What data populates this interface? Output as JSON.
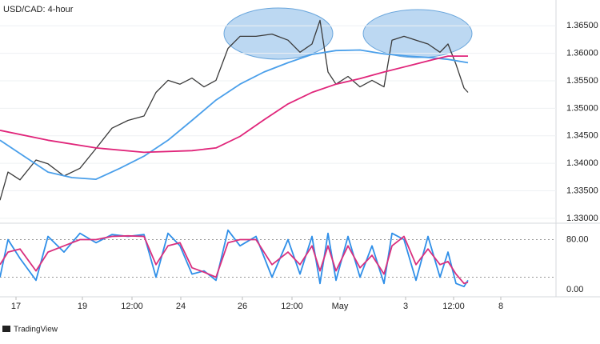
{
  "chart_data": [
    {
      "type": "line",
      "title": "USD/CAD: 4-hour",
      "xlim": [
        0,
        139
      ],
      "ylim": [
        1.3294,
        1.3697
      ],
      "yticks": [
        {
          "value": 1.365,
          "label": "1.36500"
        },
        {
          "value": 1.36,
          "label": "1.36000"
        },
        {
          "value": 1.355,
          "label": "1.35500"
        },
        {
          "value": 1.35,
          "label": "1.35000"
        },
        {
          "value": 1.345,
          "label": "1.34500"
        },
        {
          "value": 1.34,
          "label": "1.34000"
        },
        {
          "value": 1.335,
          "label": "1.33500"
        },
        {
          "value": 1.33,
          "label": "1.33000"
        }
      ],
      "grid": true,
      "series": [
        {
          "color": "#3a3a3a",
          "x": [
            0,
            2,
            5,
            9,
            12,
            16,
            20,
            24,
            28,
            32,
            36,
            39,
            42,
            45,
            48,
            51,
            54,
            57,
            60,
            64,
            68,
            72,
            75,
            78,
            80,
            82,
            84,
            87,
            90,
            93,
            96,
            98,
            101,
            104,
            107,
            110,
            112,
            114,
            116,
            117
          ],
          "values": [
            1.3333,
            1.3384,
            1.337,
            1.3406,
            1.3399,
            1.3377,
            1.3391,
            1.3427,
            1.3464,
            1.3478,
            1.3486,
            1.3529,
            1.3551,
            1.3544,
            1.3555,
            1.3539,
            1.3551,
            1.3609,
            1.3631,
            1.3631,
            1.3635,
            1.3624,
            1.3602,
            1.3617,
            1.366,
            1.3566,
            1.3544,
            1.3558,
            1.3539,
            1.3551,
            1.3539,
            1.3624,
            1.3631,
            1.3624,
            1.3617,
            1.3602,
            1.3617,
            1.358,
            1.3537,
            1.3529
          ]
        },
        {
          "color": "#4a9fea",
          "x": [
            0,
            6,
            12,
            18,
            24,
            30,
            36,
            42,
            48,
            54,
            60,
            66,
            72,
            78,
            84,
            90,
            96,
            102,
            108,
            112,
            117
          ],
          "values": [
            1.3442,
            1.3413,
            1.3384,
            1.3374,
            1.3371,
            1.3391,
            1.3413,
            1.3442,
            1.3478,
            1.3515,
            1.3544,
            1.3566,
            1.3583,
            1.3598,
            1.3605,
            1.3606,
            1.3599,
            1.3595,
            1.3592,
            1.3589,
            1.3583
          ]
        },
        {
          "color": "#e0257a",
          "x": [
            0,
            12,
            24,
            36,
            48,
            54,
            60,
            66,
            72,
            78,
            84,
            90,
            96,
            102,
            108,
            112,
            117
          ],
          "values": [
            1.346,
            1.3442,
            1.3428,
            1.342,
            1.3423,
            1.3428,
            1.3449,
            1.3479,
            1.3508,
            1.3529,
            1.3544,
            1.3554,
            1.3566,
            1.3577,
            1.3588,
            1.3595,
            1.3595
          ]
        }
      ]
    },
    {
      "type": "line",
      "xlim": [
        0,
        139
      ],
      "ylim": [
        -10,
        101
      ],
      "yticks": [
        {
          "value": 80,
          "label": "80.00"
        },
        {
          "value": 0,
          "label": "0.00"
        }
      ],
      "levels": [
        20,
        80
      ],
      "xticks": [
        {
          "value": 4,
          "label": "17"
        },
        {
          "value": 20.6,
          "label": "19"
        },
        {
          "value": 33,
          "label": "12:00"
        },
        {
          "value": 45.2,
          "label": "24"
        },
        {
          "value": 60.6,
          "label": "26"
        },
        {
          "value": 73,
          "label": "12:00"
        },
        {
          "value": 85,
          "label": "May"
        },
        {
          "value": 101.4,
          "label": "3"
        },
        {
          "value": 113.4,
          "label": "12:00"
        },
        {
          "value": 125.2,
          "label": "8"
        }
      ],
      "series": [
        {
          "color": "#2f8fe8",
          "x": [
            0,
            2,
            5,
            9,
            12,
            16,
            20,
            24,
            28,
            32,
            36,
            39,
            42,
            45,
            48,
            51,
            54,
            57,
            60,
            64,
            68,
            72,
            75,
            78,
            80,
            82,
            84,
            87,
            90,
            93,
            96,
            98,
            101,
            104,
            107,
            110,
            112,
            114,
            116,
            117
          ],
          "values": [
            20,
            80,
            50,
            15,
            85,
            60,
            90,
            75,
            88,
            85,
            88,
            20,
            90,
            70,
            25,
            30,
            15,
            95,
            70,
            85,
            20,
            80,
            25,
            85,
            10,
            90,
            15,
            85,
            20,
            70,
            10,
            90,
            80,
            15,
            85,
            20,
            60,
            10,
            5,
            15
          ]
        },
        {
          "color": "#d9307e",
          "x": [
            0,
            2,
            5,
            9,
            12,
            16,
            20,
            24,
            28,
            32,
            36,
            39,
            42,
            45,
            48,
            51,
            54,
            57,
            60,
            64,
            68,
            72,
            75,
            78,
            80,
            82,
            84,
            87,
            90,
            93,
            96,
            98,
            101,
            104,
            107,
            110,
            112,
            114,
            116,
            117
          ],
          "values": [
            40,
            60,
            65,
            30,
            60,
            70,
            80,
            80,
            85,
            86,
            85,
            40,
            70,
            75,
            35,
            28,
            20,
            75,
            80,
            80,
            40,
            60,
            40,
            70,
            30,
            70,
            30,
            70,
            35,
            55,
            25,
            70,
            85,
            40,
            65,
            40,
            45,
            25,
            10,
            12
          ]
        }
      ]
    }
  ],
  "brand": "TradingView"
}
